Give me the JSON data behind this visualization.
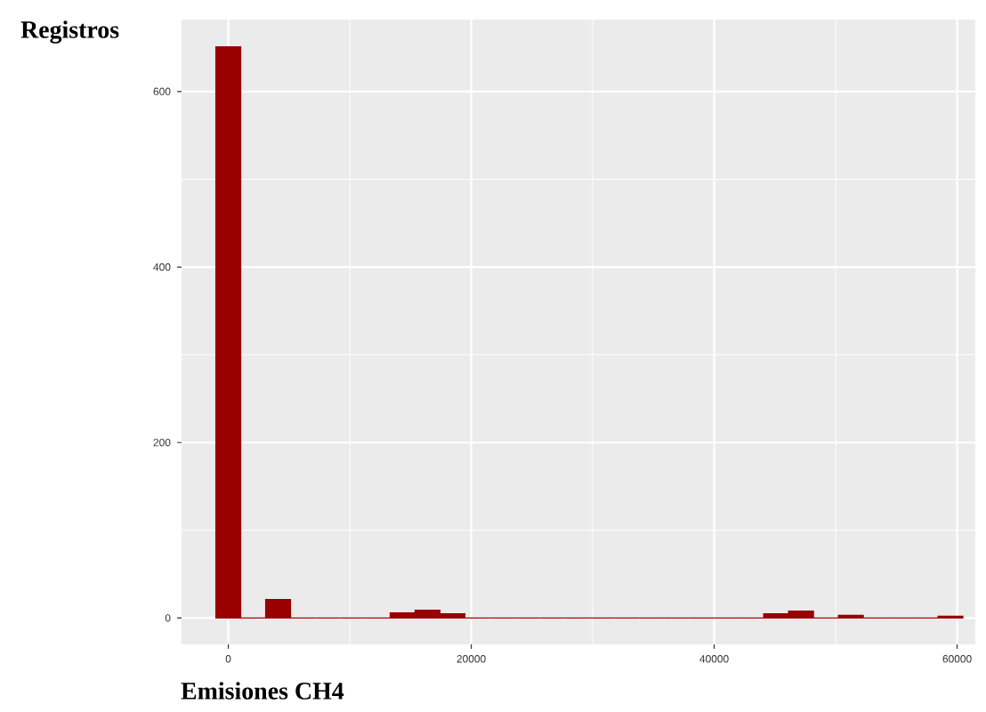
{
  "chart_data": {
    "type": "histogram",
    "xlabel": "Emisiones CH4",
    "ylabel": "Registros",
    "bins": [
      -1025,
      1025,
      3075,
      5125,
      7175,
      9225,
      11275,
      13325,
      15375,
      17425,
      19475,
      21525,
      23575,
      25625,
      27675,
      29725,
      31775,
      33825,
      35875,
      37925,
      39975,
      42025,
      44075,
      46125,
      48175,
      50225,
      52275,
      54325,
      56375,
      58425,
      60475
    ],
    "values": [
      651,
      0,
      21,
      0,
      0,
      0,
      0,
      6,
      9,
      5,
      0,
      0,
      0,
      0,
      0,
      0,
      0,
      0,
      0,
      0,
      0,
      0,
      5,
      8,
      0,
      3,
      0,
      0,
      0,
      2
    ],
    "color": "#990000",
    "xlim": [
      -3850,
      61500
    ],
    "ylim": [
      -30,
      682
    ],
    "xticks": [
      0,
      20000,
      40000,
      60000
    ],
    "yticks": [
      0,
      200,
      400,
      600
    ],
    "grid": true
  }
}
